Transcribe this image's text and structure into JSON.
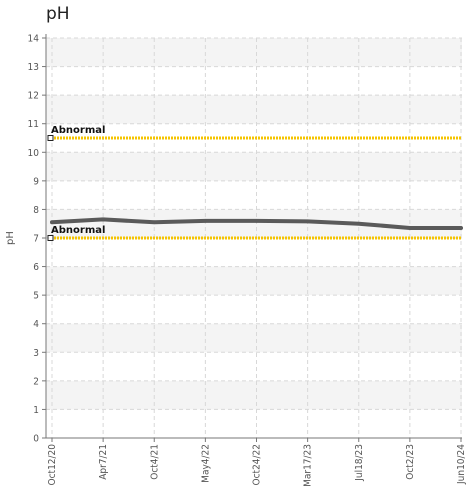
{
  "chart_data": {
    "type": "line",
    "title": "pH",
    "ylabel": "pH",
    "xlabel": "",
    "ylim": [
      0,
      14
    ],
    "yticks": [
      0,
      1,
      2,
      3,
      4,
      5,
      6,
      7,
      8,
      9,
      10,
      11,
      12,
      13,
      14
    ],
    "x_ticks": [
      "Oct12/20",
      "Apr7/21",
      "Oct4/21",
      "May4/22",
      "Oct24/22",
      "Mar17/23",
      "Jul18/23",
      "Oct2/23",
      "Jun10/24"
    ],
    "grid": true,
    "series": [
      {
        "values": [
          7.55,
          7.65,
          7.55,
          7.6,
          7.6,
          7.58,
          7.5,
          7.35,
          7.35
        ]
      }
    ],
    "reference_lines": [
      {
        "label": "Abnormal",
        "y": 10.5,
        "color": "#f5c400"
      },
      {
        "label": "Abnormal",
        "y": 7.0,
        "color": "#f5c400"
      }
    ],
    "colors": {
      "line": "#5a5a5a",
      "reference": "#f5c400",
      "band": "#f4f4f4"
    }
  }
}
